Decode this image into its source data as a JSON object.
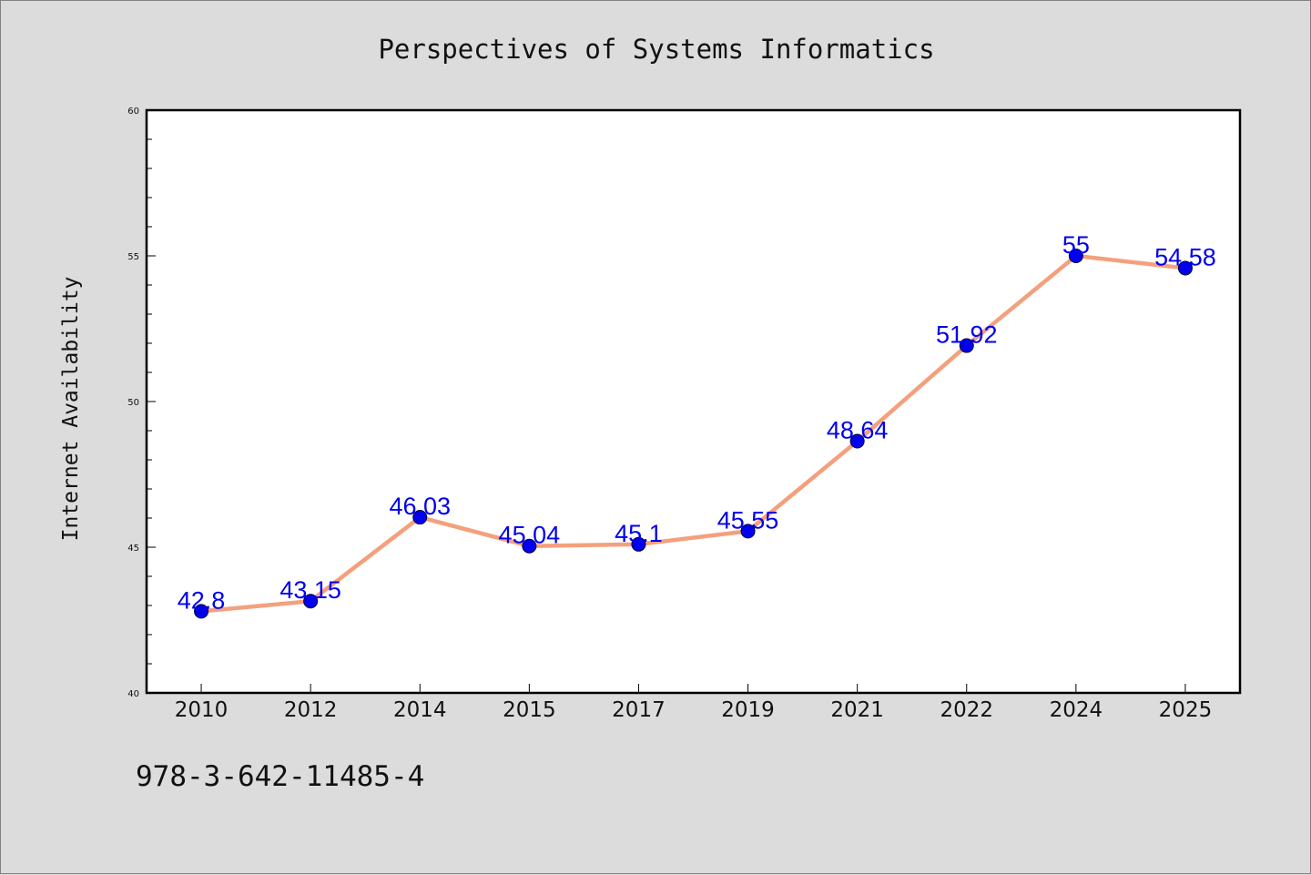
{
  "chart_data": {
    "type": "line",
    "title": "Perspectives of Systems Informatics",
    "xlabel": "",
    "ylabel": "Internet Availability",
    "categories": [
      "2010",
      "2012",
      "2014",
      "2015",
      "2017",
      "2019",
      "2021",
      "2022",
      "2024",
      "2025"
    ],
    "series": [
      {
        "values": [
          42.8,
          43.15,
          46.03,
          45.04,
          45.1,
          45.55,
          48.64,
          51.92,
          55,
          54.58
        ],
        "labels": [
          "42.8",
          "43.15",
          "46.03",
          "45.04",
          "45.1",
          "45.55",
          "48.64",
          "51.92",
          "55",
          "54.58"
        ],
        "line_color": "#f4a07c",
        "marker_color": "#0000ee"
      }
    ],
    "ylim": [
      40,
      60
    ],
    "yticks": [
      "40",
      "45",
      "50",
      "55",
      "60"
    ],
    "grid": false,
    "legend": "none"
  },
  "footer": {
    "isbn": "978-3-642-11485-4"
  }
}
